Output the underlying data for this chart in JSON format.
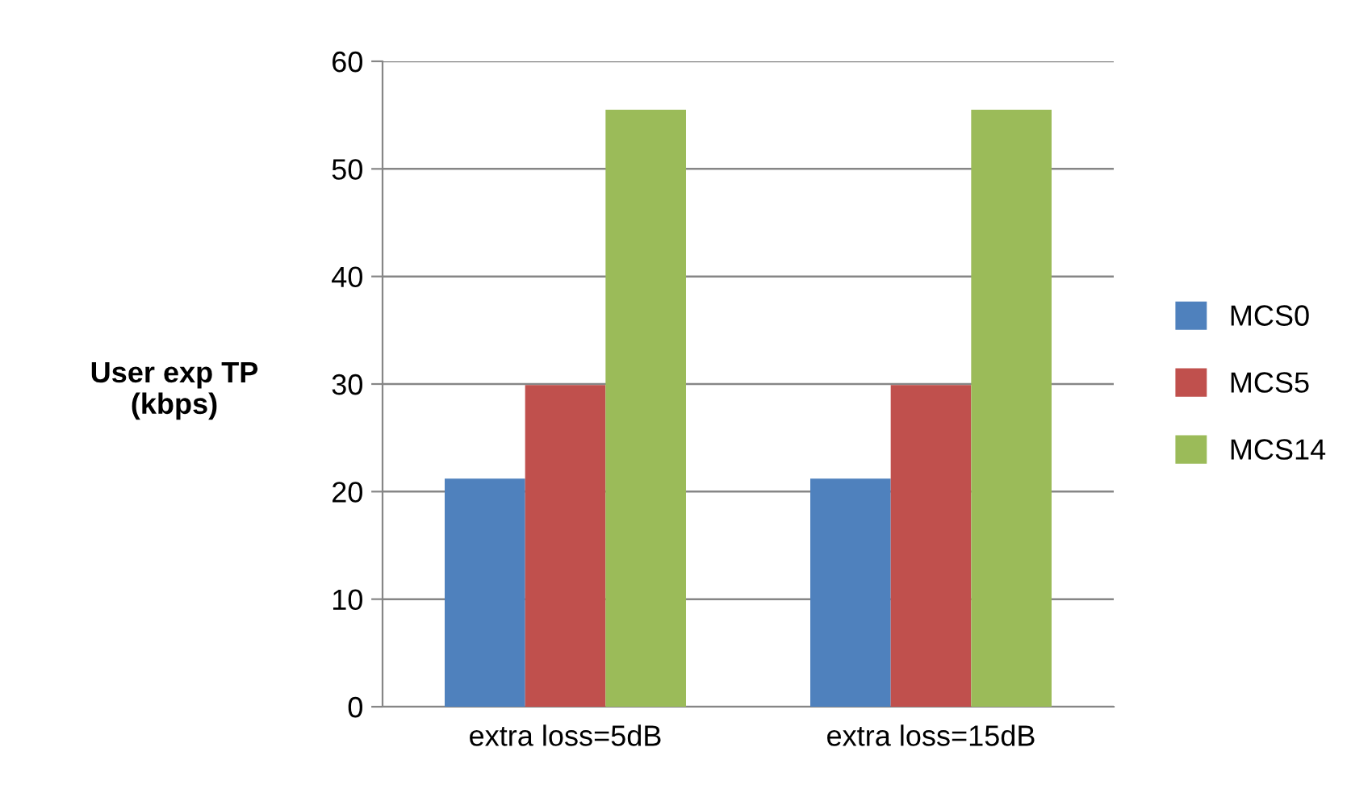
{
  "chart_data": {
    "type": "bar",
    "ylabel": "User exp TP\n(kbps)",
    "categories": [
      "extra loss=5dB",
      "extra loss=15dB"
    ],
    "series": [
      {
        "name": "MCS0",
        "color": "#4f81bd",
        "values": [
          21.2,
          21.2
        ]
      },
      {
        "name": "MCS5",
        "color": "#c0504d",
        "values": [
          29.9,
          29.9
        ]
      },
      {
        "name": "MCS14",
        "color": "#9bbb59",
        "values": [
          55.5,
          55.5
        ]
      }
    ],
    "ylim": [
      0,
      60
    ],
    "yticks": [
      0,
      10,
      20,
      30,
      40,
      50,
      60
    ],
    "grid": "y",
    "legend": "right"
  }
}
